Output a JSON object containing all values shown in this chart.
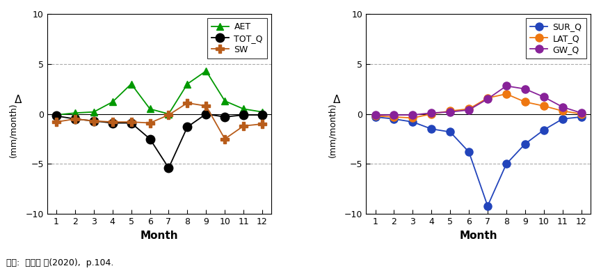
{
  "months": [
    1,
    2,
    3,
    4,
    5,
    6,
    7,
    8,
    9,
    10,
    11,
    12
  ],
  "AET": [
    -0.1,
    0.1,
    0.2,
    1.2,
    3.0,
    0.5,
    0.0,
    3.0,
    4.3,
    1.3,
    0.5,
    0.2
  ],
  "TOT_Q": [
    -0.2,
    -0.5,
    -0.7,
    -0.9,
    -0.9,
    -2.5,
    -5.4,
    -1.3,
    0.0,
    -0.3,
    -0.1,
    -0.1
  ],
  "SW": [
    -0.8,
    -0.5,
    -0.7,
    -0.8,
    -0.8,
    -0.9,
    -0.1,
    1.1,
    0.8,
    -2.5,
    -1.2,
    -1.0
  ],
  "SUR_Q": [
    -0.3,
    -0.5,
    -0.8,
    -1.5,
    -1.8,
    -3.8,
    -9.2,
    -5.0,
    -3.0,
    -1.6,
    -0.5,
    -0.3
  ],
  "LAT_Q": [
    -0.2,
    -0.3,
    -0.4,
    0.0,
    0.3,
    0.5,
    1.6,
    2.0,
    1.2,
    0.8,
    0.3,
    0.0
  ],
  "GW_Q": [
    -0.1,
    -0.1,
    -0.1,
    0.1,
    0.2,
    0.4,
    1.5,
    2.8,
    2.5,
    1.7,
    0.7,
    0.1
  ],
  "AET_color": "#009900",
  "TOT_Q_color": "#000000",
  "SW_color": "#b85c1a",
  "SUR_Q_color": "#2244bb",
  "LAT_Q_color": "#ee7711",
  "GW_Q_color": "#882299",
  "ylim": [
    -10,
    10
  ],
  "yticks": [
    -10,
    -5,
    0,
    5,
    10
  ],
  "ylabel_top": "Δ",
  "ylabel_bottom": "(mm/month)",
  "xlabel": "Month",
  "caption": "자료:  김익재 외(2020),  p.104.",
  "dashed_color": "#aaaaaa",
  "grid_linestyle": "--",
  "grid_linewidth": 0.8
}
